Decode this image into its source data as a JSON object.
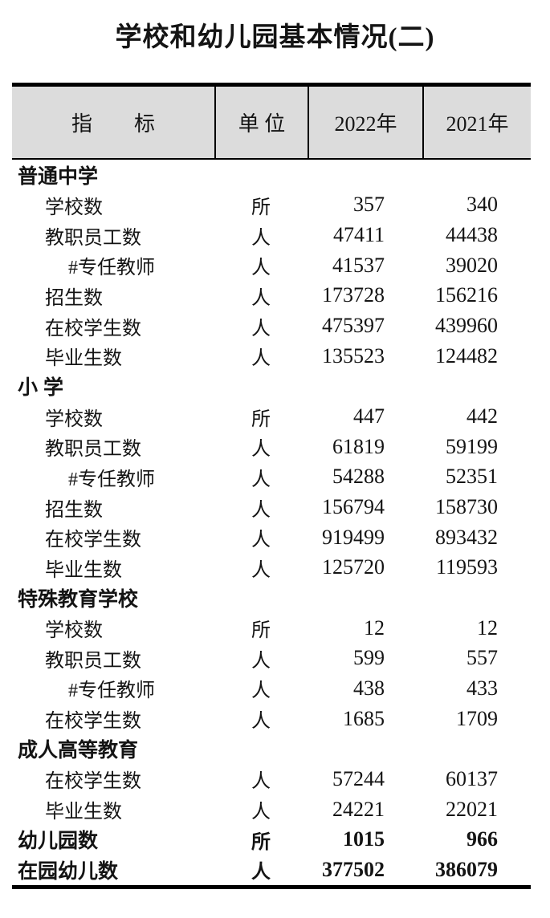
{
  "title": "学校和幼儿园基本情况(二)",
  "colors": {
    "header_bg": "#dcdcdc",
    "border": "#000000",
    "text": "#141414"
  },
  "table": {
    "columns": [
      "指　　标",
      "单 位",
      "2022年",
      "2021年"
    ],
    "rows": [
      {
        "label": "普通中学",
        "style": "section",
        "unit": "",
        "y2022": "",
        "y2021": ""
      },
      {
        "label": "学校数",
        "style": "item",
        "unit": "所",
        "y2022": "357",
        "y2021": "340"
      },
      {
        "label": "教职员工数",
        "style": "item",
        "unit": "人",
        "y2022": "47411",
        "y2021": "44438"
      },
      {
        "label": "#专任教师",
        "style": "subitem",
        "unit": "人",
        "y2022": "41537",
        "y2021": "39020"
      },
      {
        "label": "招生数",
        "style": "item",
        "unit": "人",
        "y2022": "173728",
        "y2021": "156216"
      },
      {
        "label": "在校学生数",
        "style": "item",
        "unit": "人",
        "y2022": "475397",
        "y2021": "439960"
      },
      {
        "label": "毕业生数",
        "style": "item",
        "unit": "人",
        "y2022": "135523",
        "y2021": "124482"
      },
      {
        "label": "小 学",
        "style": "section",
        "unit": "",
        "y2022": "",
        "y2021": ""
      },
      {
        "label": "学校数",
        "style": "item",
        "unit": "所",
        "y2022": "447",
        "y2021": "442"
      },
      {
        "label": "教职员工数",
        "style": "item",
        "unit": "人",
        "y2022": "61819",
        "y2021": "59199"
      },
      {
        "label": "#专任教师",
        "style": "subitem",
        "unit": "人",
        "y2022": "54288",
        "y2021": "52351"
      },
      {
        "label": "招生数",
        "style": "item",
        "unit": "人",
        "y2022": "156794",
        "y2021": "158730"
      },
      {
        "label": "在校学生数",
        "style": "item",
        "unit": "人",
        "y2022": "919499",
        "y2021": "893432"
      },
      {
        "label": "毕业生数",
        "style": "item",
        "unit": "人",
        "y2022": "125720",
        "y2021": "119593"
      },
      {
        "label": "特殊教育学校",
        "style": "section",
        "unit": "",
        "y2022": "",
        "y2021": ""
      },
      {
        "label": "学校数",
        "style": "item",
        "unit": "所",
        "y2022": "12",
        "y2021": "12"
      },
      {
        "label": "教职员工数",
        "style": "item",
        "unit": "人",
        "y2022": "599",
        "y2021": "557"
      },
      {
        "label": "#专任教师",
        "style": "subitem",
        "unit": "人",
        "y2022": "438",
        "y2021": "433"
      },
      {
        "label": "在校学生数",
        "style": "item",
        "unit": "人",
        "y2022": "1685",
        "y2021": "1709"
      },
      {
        "label": "成人高等教育",
        "style": "section",
        "unit": "",
        "y2022": "",
        "y2021": ""
      },
      {
        "label": "在校学生数",
        "style": "item",
        "unit": "人",
        "y2022": "57244",
        "y2021": "60137"
      },
      {
        "label": "毕业生数",
        "style": "item",
        "unit": "人",
        "y2022": "24221",
        "y2021": "22021"
      },
      {
        "label": "幼儿园数",
        "style": "total",
        "unit": "所",
        "y2022": "1015",
        "y2021": "966"
      },
      {
        "label": "在园幼儿数",
        "style": "total",
        "unit": "人",
        "y2022": "377502",
        "y2021": "386079"
      }
    ]
  }
}
